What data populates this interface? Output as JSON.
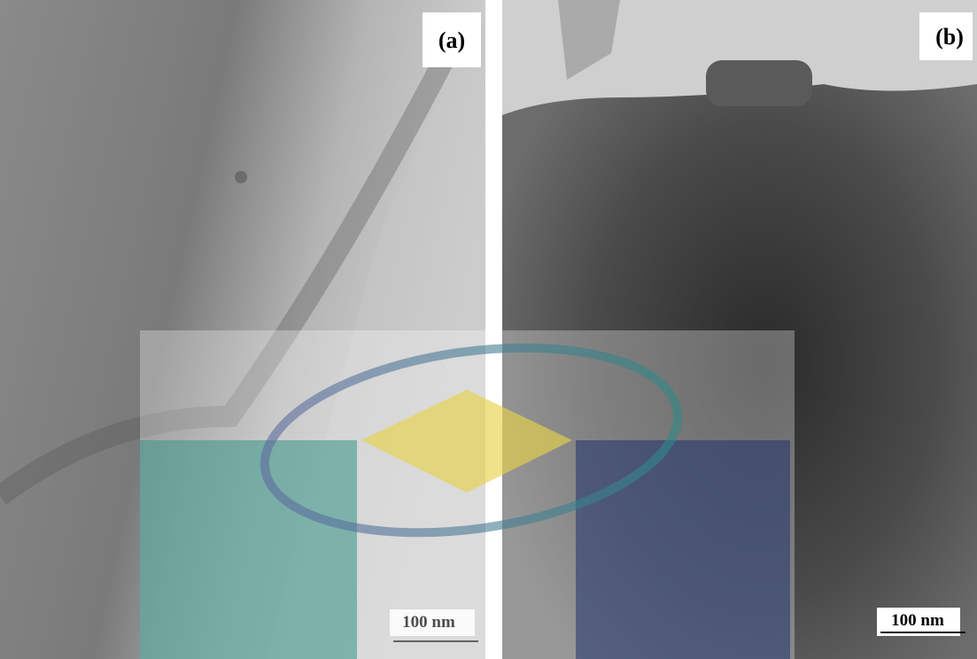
{
  "panels": [
    {
      "label": "(a)",
      "scale_bar": "100 nm"
    },
    {
      "label": "(b)",
      "scale_bar": "100 nm"
    }
  ]
}
